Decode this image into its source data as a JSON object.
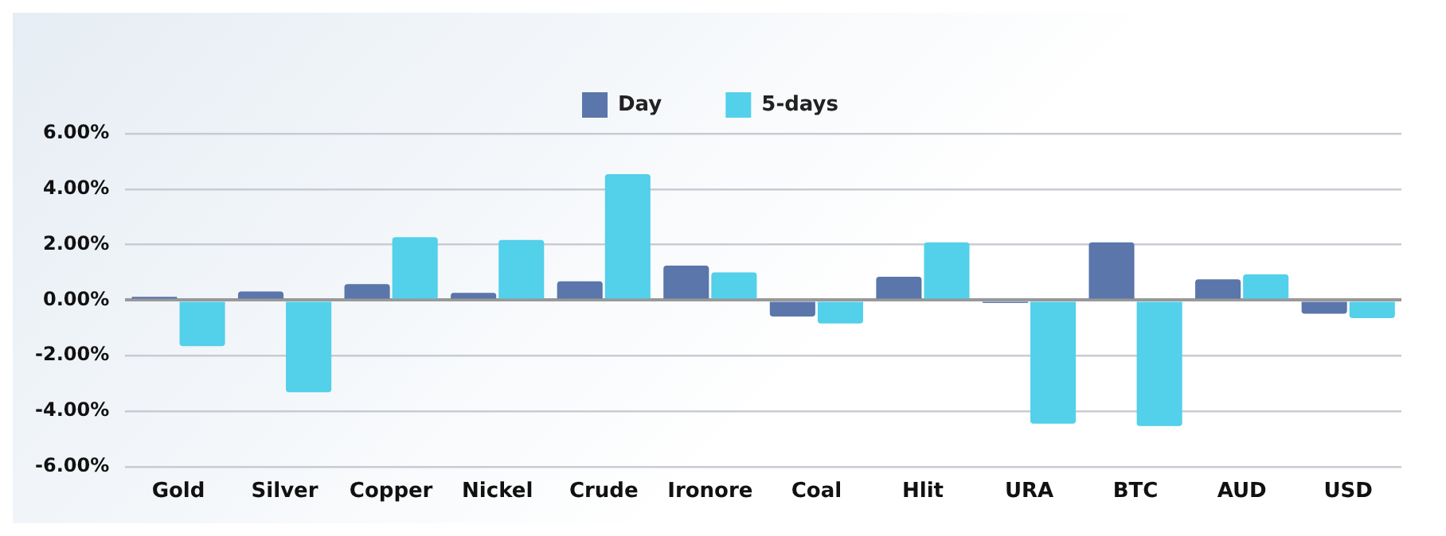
{
  "chart_data": {
    "type": "bar",
    "categories": [
      "Gold",
      "Silver",
      "Copper",
      "Nickel",
      "Crude",
      "Ironore",
      "Coal",
      "Hlit",
      "URA",
      "BTC",
      "AUD",
      "USD"
    ],
    "series": [
      {
        "name": "Day",
        "color": "#5a76aa",
        "values": [
          0.12,
          0.31,
          0.58,
          0.26,
          0.68,
          1.24,
          -0.59,
          0.84,
          -0.1,
          2.08,
          0.75,
          -0.49
        ]
      },
      {
        "name": "5-days",
        "color": "#53d0ea",
        "values": [
          -1.66,
          -3.32,
          2.27,
          2.17,
          4.54,
          1.0,
          -0.84,
          2.08,
          -4.45,
          -4.54,
          0.93,
          -0.65
        ]
      }
    ],
    "ylim": [
      -6,
      6
    ],
    "yticks": [
      {
        "value": -6,
        "label": "-6.00%"
      },
      {
        "value": -4,
        "label": "-4.00%"
      },
      {
        "value": -2,
        "label": "-2.00%"
      },
      {
        "value": 0,
        "label": "0.00%"
      },
      {
        "value": 2,
        "label": "2.00%"
      },
      {
        "value": 4,
        "label": "4.00%"
      },
      {
        "value": 6,
        "label": "6.00%"
      }
    ],
    "grid": "y",
    "legend": "top"
  }
}
